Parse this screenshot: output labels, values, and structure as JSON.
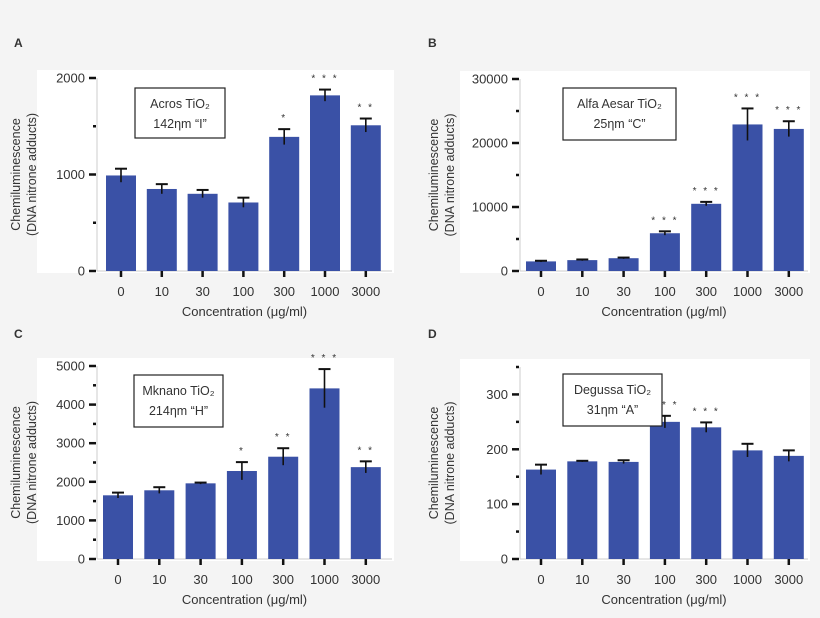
{
  "chart_data": [
    {
      "type": "bar",
      "panel": "A",
      "annotation": [
        "Acros TiO₂",
        "142ηm “I”"
      ],
      "xlabel": "Concentration (μg/ml)",
      "ylabel": [
        "Chemiluminescence",
        "(DNA nitrone adducts)"
      ],
      "categories": [
        "0",
        "10",
        "30",
        "100",
        "300",
        "1000",
        "3000"
      ],
      "values": [
        990,
        850,
        800,
        710,
        1390,
        1820,
        1510
      ],
      "errors": [
        70,
        50,
        40,
        50,
        80,
        60,
        70
      ],
      "significance": [
        "",
        "",
        "",
        "",
        "*",
        "***",
        "**"
      ],
      "ylim": [
        0,
        2000
      ],
      "yticks": [
        0,
        1000,
        2000
      ],
      "yminor": [
        500,
        1500
      ],
      "bar_color": "#3a51a6"
    },
    {
      "type": "bar",
      "panel": "B",
      "annotation": [
        "Alfa Aesar TiO₂",
        "25ηm “C”"
      ],
      "xlabel": "Concentration (μg/ml)",
      "ylabel": [
        "Chemiluminescence",
        "(DNA nitrone adducts)"
      ],
      "categories": [
        "0",
        "10",
        "30",
        "100",
        "300",
        "1000",
        "3000"
      ],
      "values": [
        1500,
        1700,
        2000,
        5900,
        10500,
        22900,
        22200
      ],
      "errors": [
        100,
        100,
        100,
        300,
        300,
        2500,
        1200
      ],
      "significance": [
        "",
        "",
        "",
        "***",
        "***",
        "***",
        "***"
      ],
      "ylim": [
        0,
        30000
      ],
      "yticks": [
        0,
        10000,
        20000,
        30000
      ],
      "yminor": [
        5000,
        15000,
        25000
      ],
      "bar_color": "#3a51a6"
    },
    {
      "type": "bar",
      "panel": "C",
      "annotation": [
        "Mknano TiO₂",
        "214ηm “H”"
      ],
      "xlabel": "Concentration (μg/ml)",
      "ylabel": [
        "Chemiluminescence",
        "(DNA nitrone adducts)"
      ],
      "categories": [
        "0",
        "10",
        "30",
        "100",
        "300",
        "1000",
        "3000"
      ],
      "values": [
        1650,
        1780,
        1960,
        2280,
        2650,
        4420,
        2380
      ],
      "errors": [
        70,
        80,
        20,
        230,
        220,
        500,
        150
      ],
      "significance": [
        "",
        "",
        "",
        "*",
        "**",
        "***",
        "**"
      ],
      "ylim": [
        0,
        5000
      ],
      "yticks": [
        0,
        1000,
        2000,
        3000,
        4000,
        5000
      ],
      "yminor": [
        500,
        1500,
        2500,
        3500,
        4500
      ],
      "bar_color": "#3a51a6"
    },
    {
      "type": "bar",
      "panel": "D",
      "annotation": [
        "Degussa TiO₂",
        "31ηm “A”"
      ],
      "xlabel": "Concentration (μg/ml)",
      "ylabel": [
        "Chemiluminescence",
        "(DNA nitrone adducts)"
      ],
      "categories": [
        "0",
        "10",
        "30",
        "100",
        "300",
        "1000",
        "3000"
      ],
      "values": [
        163,
        178,
        177,
        250,
        240,
        198,
        188
      ],
      "errors": [
        9,
        1,
        3,
        11,
        9,
        12,
        10
      ],
      "significance": [
        "",
        "",
        "",
        "***",
        "***",
        "",
        ""
      ],
      "ylim": [
        0,
        350
      ],
      "yticks": [
        0,
        100,
        200,
        300
      ],
      "yminor": [
        50,
        150,
        250,
        350
      ],
      "bar_color": "#3a51a6"
    }
  ]
}
